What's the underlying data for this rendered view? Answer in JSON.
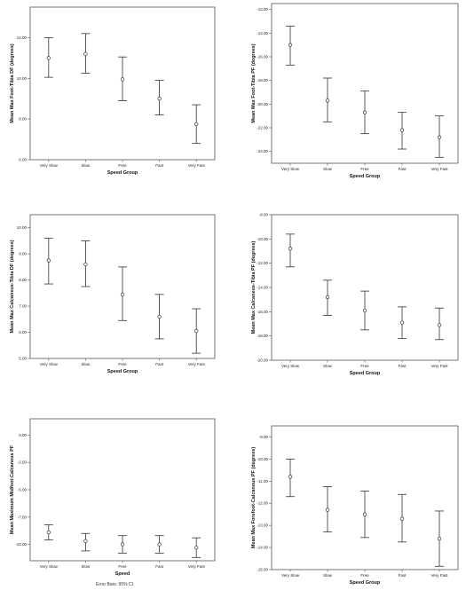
{
  "chart_data": [
    {
      "type": "errorbar",
      "ylabel": "Mean Max Foot-Tibia DF (degrees)",
      "xlabel": "Speed Group",
      "categories": [
        "Very Slow",
        "Slow",
        "Free",
        "Fast",
        "Very Fast"
      ],
      "ylim": [
        6,
        13.5
      ],
      "yticks": [
        6,
        8,
        10,
        12
      ],
      "ytick_labels": [
        "6.00",
        "8.00",
        "10.00",
        "12.00"
      ],
      "mean": [
        11.0,
        11.2,
        9.95,
        9.0,
        7.75
      ],
      "lower": [
        10.05,
        10.25,
        8.9,
        8.2,
        6.8
      ],
      "upper": [
        12.0,
        12.2,
        11.05,
        9.9,
        8.7
      ],
      "grid": false
    },
    {
      "type": "errorbar",
      "ylabel": "Mean Max Foot-Tibia PF (degrees)",
      "xlabel": "Speed Group",
      "categories": [
        "Very Slow",
        "Slow",
        "Free",
        "Fast",
        "Very Fast"
      ],
      "ylim": [
        -25,
        -11.5
      ],
      "yticks": [
        -24,
        -22,
        -20,
        -18,
        -16,
        -14,
        -12
      ],
      "ytick_labels": [
        "-24.00",
        "-22.00",
        "-20.00",
        "-18.00",
        "-16.00",
        "-14.00",
        "-12.00"
      ],
      "mean": [
        -15.0,
        -19.7,
        -20.7,
        -22.2,
        -22.8
      ],
      "lower": [
        -16.7,
        -21.5,
        -22.5,
        -23.8,
        -24.5
      ],
      "upper": [
        -13.4,
        -17.8,
        -18.9,
        -20.7,
        -21.0
      ],
      "grid": false
    },
    {
      "type": "errorbar",
      "ylabel": "Mean Max Calcaneus-Tibia DF (degrees)",
      "xlabel": "Speed Group",
      "categories": [
        "Very Slow",
        "Slow",
        "Free",
        "Fast",
        "Very Fast"
      ],
      "ylim": [
        5,
        10.5
      ],
      "yticks": [
        5,
        6,
        7,
        8,
        9,
        10
      ],
      "ytick_labels": [
        "5.00",
        "6.00",
        "7.00",
        "8.00",
        "9.00",
        "10.00"
      ],
      "mean": [
        8.75,
        8.6,
        7.45,
        6.6,
        6.05
      ],
      "lower": [
        7.85,
        7.75,
        6.45,
        5.75,
        5.2
      ],
      "upper": [
        9.6,
        9.5,
        8.5,
        7.45,
        6.9
      ],
      "grid": false
    },
    {
      "type": "errorbar",
      "ylabel": "Mean Max Calcaneus-Tibia PF (degrees)",
      "xlabel": "Speed Group",
      "categories": [
        "Very Slow",
        "Slow",
        "Free",
        "Fast",
        "Very Fast"
      ],
      "ylim": [
        -20,
        -8
      ],
      "yticks": [
        -20,
        -18,
        -16,
        -14,
        -12,
        -10,
        -8
      ],
      "ytick_labels": [
        "-20.00",
        "-18.00",
        "-16.00",
        "-14.00",
        "-12.00",
        "-10.00",
        "-8.00"
      ],
      "mean": [
        -10.8,
        -14.8,
        -15.9,
        -16.9,
        -17.1
      ],
      "lower": [
        -12.3,
        -16.3,
        -17.5,
        -18.2,
        -18.3
      ],
      "upper": [
        -9.6,
        -13.4,
        -14.3,
        -15.6,
        -15.7
      ],
      "grid": false
    },
    {
      "type": "errorbar",
      "ylabel": "Mean Maximum Midfoot-Calcaneus PF",
      "xlabel": "Speed",
      "categories": [
        "Very Slow",
        "Slow",
        "Free",
        "Fast",
        "Very Fast"
      ],
      "ylim": [
        -11.5,
        1.5
      ],
      "yticks": [
        -10,
        -7.5,
        -5,
        -2.5,
        0
      ],
      "ytick_labels": [
        "-10.00",
        "-7.50",
        "-5.00",
        "-2.50",
        "0.00"
      ],
      "mean": [
        -8.9,
        -9.7,
        -10.0,
        -10.0,
        -10.3
      ],
      "lower": [
        -9.6,
        -10.6,
        -10.8,
        -10.8,
        -11.2
      ],
      "upper": [
        -8.2,
        -9.0,
        -9.2,
        -9.2,
        -9.4
      ],
      "grid": false
    },
    {
      "type": "errorbar",
      "ylabel": "Mean Max Forefoot-Calcaneus PF (degrees)",
      "xlabel": "Speed Group",
      "categories": [
        "Very Slow",
        "Slow",
        "Free",
        "Fast",
        "Very Fast"
      ],
      "ylim": [
        -15,
        -8.5
      ],
      "yticks": [
        -15,
        -14,
        -13,
        -12,
        -11,
        -10,
        -9
      ],
      "ytick_labels": [
        "-15.00",
        "-14.00",
        "-13.00",
        "-12.00",
        "-11.00",
        "-10.00",
        "-9.00"
      ],
      "mean": [
        -10.8,
        -12.3,
        -12.5,
        -12.7,
        -13.6
      ],
      "lower": [
        -11.7,
        -13.3,
        -13.55,
        -13.75,
        -14.85
      ],
      "upper": [
        -10.0,
        -11.25,
        -11.45,
        -11.6,
        -12.35
      ],
      "grid": false
    }
  ],
  "footnote": "Error Bars: 95% CI"
}
